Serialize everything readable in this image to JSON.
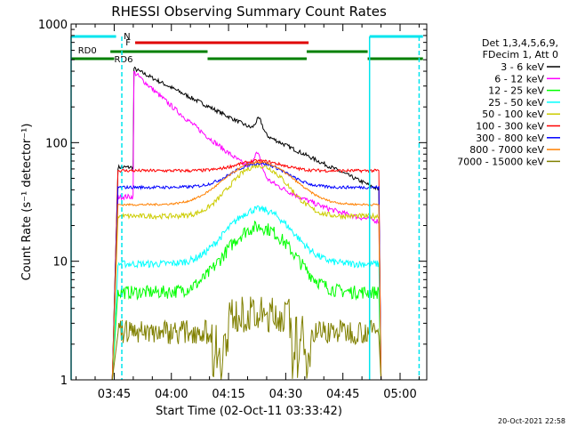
{
  "chart_data": {
    "type": "line",
    "title": "RHESSI Observing Summary Count Rates",
    "xlabel": "Start Time (02-Oct-11 03:33:42)",
    "ylabel": "Count Rate (s⁻¹ detector⁻¹)",
    "y_scale": "log",
    "ylim": [
      1,
      1000
    ],
    "xlim": [
      "03:33:42",
      "05:07:00"
    ],
    "x_ticks": [
      "03:45",
      "04:00",
      "04:15",
      "04:30",
      "04:45",
      "05:00"
    ],
    "y_ticks": [
      "1",
      "10",
      "100",
      "1000"
    ],
    "footer_date": "20-Oct-2021 22:58",
    "legend": {
      "header": [
        "Det 1,3,4,5,6,9,",
        "FDecim 1, Att 0"
      ],
      "placement": "right"
    },
    "flags": [
      {
        "label": "N",
        "color": "#00e5ee"
      },
      {
        "label": "F",
        "color": "#e00000"
      },
      {
        "label": "RD0",
        "color": "#008000"
      },
      {
        "label": "RD6",
        "color": "#008000"
      }
    ],
    "series": [
      {
        "name": "3 - 6 keV",
        "color": "#000000"
      },
      {
        "name": "6 - 12 keV",
        "color": "#ff00ff"
      },
      {
        "name": "12 - 25 keV",
        "color": "#00ff00"
      },
      {
        "name": "25 - 50 keV",
        "color": "#00ffff"
      },
      {
        "name": "50 - 100 keV",
        "color": "#cccc00"
      },
      {
        "name": "100 - 300 keV",
        "color": "#ff0000"
      },
      {
        "name": "300 - 800 keV",
        "color": "#0000ff"
      },
      {
        "name": "800 - 7000 keV",
        "color": "#ff8000"
      },
      {
        "name": "7000 - 15000 keV",
        "color": "#808000"
      }
    ]
  }
}
